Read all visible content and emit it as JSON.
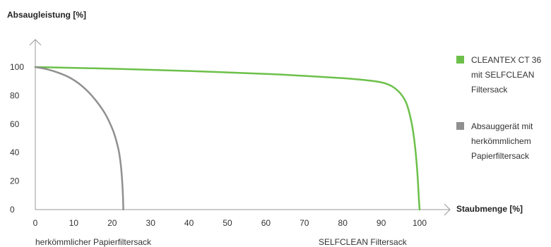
{
  "chart_data": {
    "type": "line",
    "title": "",
    "ylabel": "Absaugleistung [%]",
    "xlabel": "Staubmenge [%]",
    "xlim": [
      0,
      100
    ],
    "ylim": [
      0,
      100
    ],
    "x_ticks": [
      "0",
      "10",
      "20",
      "30",
      "40",
      "50",
      "60",
      "70",
      "80",
      "90",
      "100"
    ],
    "y_ticks": [
      "0",
      "20",
      "40",
      "60",
      "80",
      "100"
    ],
    "grid": false,
    "legend_position": "right",
    "below_labels": {
      "left": "herkömmlicher Papierfiltersack",
      "right": "SELFCLEAN Filtersack"
    },
    "series": [
      {
        "name_lines": [
          "CLEANTEX CT 36",
          "mit SELFCLEAN",
          "Filtersack"
        ],
        "color": "#6cc04a",
        "points": [
          [
            0,
            100
          ],
          [
            20,
            98.8
          ],
          [
            40,
            97.2
          ],
          [
            60,
            95.2
          ],
          [
            70,
            93.8
          ],
          [
            80,
            92.2
          ],
          [
            86,
            90.8
          ],
          [
            89,
            89.8
          ],
          [
            91,
            88.6
          ],
          [
            93,
            86.2
          ],
          [
            95,
            81.5
          ],
          [
            96.5,
            75
          ],
          [
            97.5,
            66
          ],
          [
            98.3,
            55
          ],
          [
            98.9,
            42
          ],
          [
            99.3,
            30
          ],
          [
            99.6,
            18
          ],
          [
            99.8,
            8
          ],
          [
            100,
            0
          ]
        ]
      },
      {
        "name_lines": [
          "Absauggerät mit",
          "herkömmlichem",
          "Papierfiltersack"
        ],
        "color": "#909090",
        "points": [
          [
            0,
            100
          ],
          [
            3,
            98.5
          ],
          [
            6,
            96
          ],
          [
            9,
            92.5
          ],
          [
            12,
            87
          ],
          [
            15,
            79
          ],
          [
            18,
            68
          ],
          [
            20,
            57
          ],
          [
            21,
            49
          ],
          [
            21.8,
            40
          ],
          [
            22.3,
            30
          ],
          [
            22.6,
            20
          ],
          [
            22.8,
            10
          ],
          [
            22.9,
            0
          ]
        ]
      }
    ]
  }
}
